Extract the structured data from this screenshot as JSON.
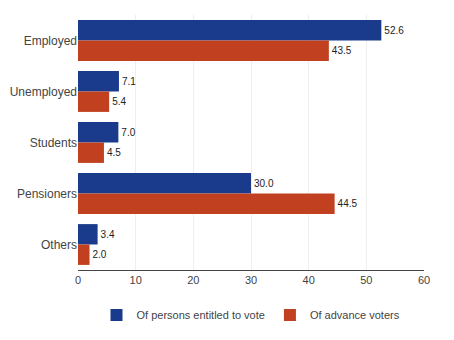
{
  "chart_data": {
    "type": "bar",
    "orientation": "horizontal",
    "categories": [
      "Employed",
      "Unemployed",
      "Students",
      "Pensioners",
      "Others"
    ],
    "series": [
      {
        "name": "Of persons entitled to vote",
        "color": "#1a3a8c",
        "values": [
          52.6,
          7.1,
          7.0,
          30.0,
          3.4
        ],
        "value_labels": [
          "52.6",
          "7.1",
          "7.0",
          "30.0",
          "3.4"
        ]
      },
      {
        "name": "Of advance voters",
        "color": "#c04020",
        "values": [
          43.5,
          5.4,
          4.5,
          44.5,
          2.0
        ],
        "value_labels": [
          "43.5",
          "5.4",
          "4.5",
          "44.5",
          "2.0"
        ]
      }
    ],
    "xlim": [
      0,
      60
    ],
    "xticks": [
      0,
      10,
      20,
      30,
      40,
      50,
      60
    ],
    "grid": true,
    "data_labels": true,
    "legend": "bottom"
  }
}
